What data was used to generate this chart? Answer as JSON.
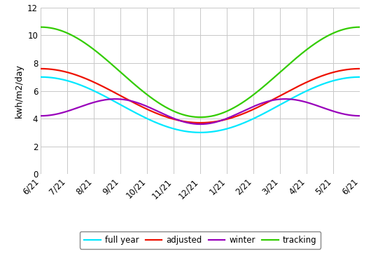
{
  "x_labels": [
    "6/21",
    "7/21",
    "8/21",
    "9/21",
    "10/21",
    "11/21",
    "12/21",
    "1/21",
    "2/21",
    "3/21",
    "4/21",
    "5/21",
    "6/21"
  ],
  "ylabel": "kwh/m2/day",
  "ylim": [
    0,
    12
  ],
  "yticks": [
    0,
    2,
    4,
    6,
    8,
    10,
    12
  ],
  "curves": {
    "full_year": {
      "A": 5.0,
      "B": 2.0,
      "color": "#00e8ff"
    },
    "adjusted": {
      "A": 5.65,
      "B": 1.95,
      "color": "#ee1100"
    },
    "winter": {
      "A": 4.65,
      "B_cos1": 0.3,
      "C_cos2": -0.75,
      "color": "#9900bb"
    },
    "tracking": {
      "A": 7.35,
      "B": 3.25,
      "color": "#33cc00"
    }
  },
  "legend_labels": [
    "full year",
    "adjusted",
    "winter",
    "tracking"
  ],
  "background_color": "#ffffff",
  "grid_color": "#c8c8c8",
  "line_width": 1.6
}
